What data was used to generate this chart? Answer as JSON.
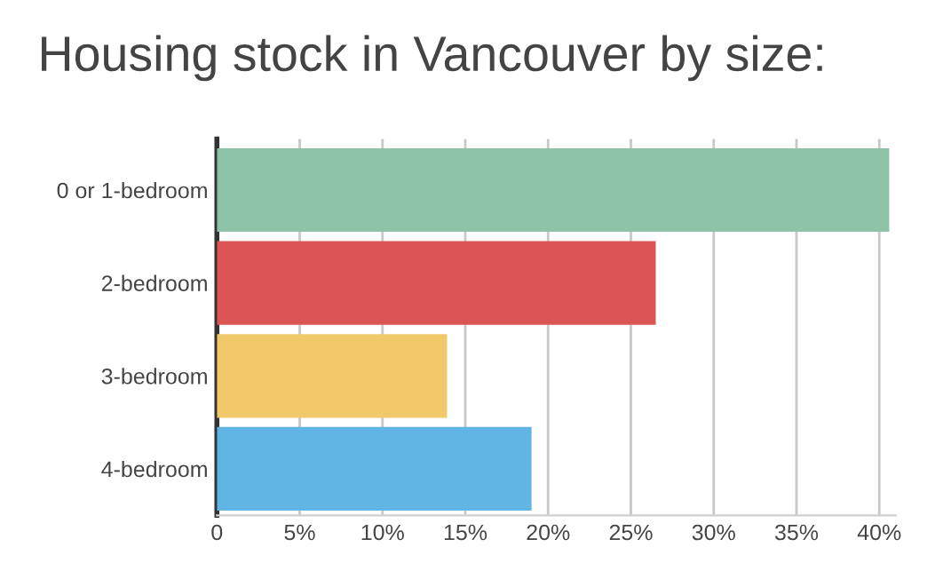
{
  "chart_data": {
    "type": "bar",
    "orientation": "horizontal",
    "title": "Housing stock in Vancouver by size:",
    "categories": [
      "0 or 1-bedroom",
      "2-bedroom",
      "3-bedroom",
      "4-bedroom"
    ],
    "values": [
      40.6,
      26.5,
      13.9,
      19.0
    ],
    "colors": [
      "#8fc3a8",
      "#dc5555",
      "#efc96a",
      "#60b5e4"
    ],
    "xlim": [
      0,
      41
    ],
    "xticks": [
      0,
      {
        "value": 5,
        "label": "5%"
      },
      {
        "value": 10,
        "label": "10%"
      },
      {
        "value": 15,
        "label": "15%"
      },
      {
        "value": 20,
        "label": "20%"
      },
      {
        "value": 25,
        "label": "25%"
      },
      {
        "value": 30,
        "label": "30%"
      },
      {
        "value": 35,
        "label": "35%"
      },
      {
        "value": 40,
        "label": "40%"
      }
    ],
    "grid": "x"
  }
}
